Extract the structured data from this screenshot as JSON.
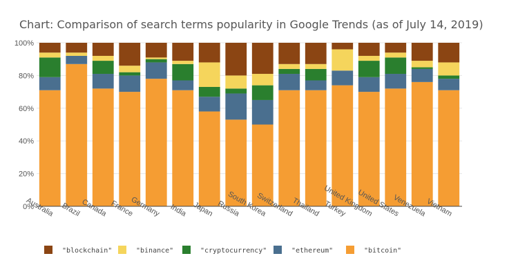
{
  "chart_data": {
    "type": "bar",
    "stacked": true,
    "title": "Chart: Comparison of search terms popularity in Google Trends (as of July 14, 2019)",
    "xlabel": "",
    "ylabel": "",
    "ylim": [
      0,
      100
    ],
    "yticks": [
      "0%",
      "20%",
      "40%",
      "60%",
      "80%",
      "100%"
    ],
    "grid": true,
    "legend_position": "bottom",
    "categories": [
      "Australia",
      "Brazil",
      "Canada",
      "France",
      "Germany",
      "India",
      "Japan",
      "Russia",
      "South Korea",
      "Switzerland",
      "Thailand",
      "Turkey",
      "United Kingdom",
      "United States",
      "Venezuela",
      "Vietnam"
    ],
    "series": [
      {
        "name": "\"bitcoin\"",
        "color": "#f59d33",
        "values": [
          71,
          87,
          72,
          70,
          78,
          71,
          58,
          53,
          50,
          71,
          71,
          74,
          70,
          72,
          76,
          71
        ]
      },
      {
        "name": "\"ethereum\"",
        "color": "#4a6f8f",
        "values": [
          8,
          5,
          9,
          10,
          10,
          6,
          9,
          16,
          15,
          10,
          6,
          9,
          9,
          9,
          8,
          7
        ]
      },
      {
        "name": "\"cryptocurrency\"",
        "color": "#2a7f2e",
        "values": [
          12,
          0,
          8,
          2,
          2,
          10,
          6,
          3,
          9,
          3,
          7,
          0,
          10,
          10,
          1,
          2
        ]
      },
      {
        "name": "\"binance\"",
        "color": "#f5d55c",
        "values": [
          3,
          2,
          3,
          4,
          1,
          2,
          15,
          8,
          7,
          3,
          3,
          13,
          3,
          3,
          4,
          8
        ]
      },
      {
        "name": "\"blockchain\"",
        "color": "#8b4513",
        "values": [
          6,
          6,
          8,
          14,
          9,
          11,
          12,
          20,
          19,
          13,
          13,
          4,
          8,
          6,
          11,
          12
        ]
      }
    ],
    "legend_order": [
      "\"blockchain\"",
      "\"binance\"",
      "\"cryptocurrency\"",
      "\"ethereum\"",
      "\"bitcoin\""
    ]
  }
}
